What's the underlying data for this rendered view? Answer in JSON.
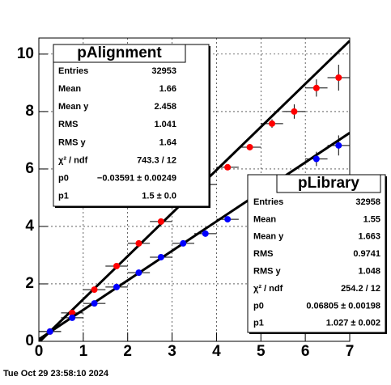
{
  "chart_data": {
    "type": "profile",
    "xlim": [
      0,
      7
    ],
    "ylim": [
      0,
      10.56
    ],
    "xticks": [
      0,
      1,
      2,
      3,
      4,
      5,
      6,
      7
    ],
    "yticks": [
      0,
      2,
      4,
      6,
      8,
      10
    ],
    "grid": true,
    "timestamp": "Tue Oct 29 23:58:10 2024",
    "series": [
      {
        "name": "pAlignment",
        "color": "#ff0000",
        "x": [
          0.25,
          0.75,
          1.25,
          1.75,
          2.25,
          2.75,
          3.75,
          4.25,
          4.75,
          5.25,
          5.75,
          6.25,
          6.75
        ],
        "values": [
          0.34,
          0.99,
          1.8,
          2.62,
          3.41,
          4.17,
          5.46,
          6.06,
          6.76,
          7.58,
          8.0,
          8.82,
          9.18
        ],
        "errors": [
          0.05,
          0.05,
          0.05,
          0.05,
          0.05,
          0.05,
          0.06,
          0.08,
          0.1,
          0.15,
          0.25,
          0.3,
          0.45
        ],
        "stats": [
          {
            "name": "Entries",
            "value": 32953
          },
          {
            "name": "Mean",
            "value": 1.66
          },
          {
            "name": "Mean y",
            "value": 2.458
          },
          {
            "name": "RMS",
            "value": 1.041
          },
          {
            "name": "RMS y",
            "value": 1.64
          },
          {
            "name": "χ² / ndf",
            "value": "743.3 / 12"
          },
          {
            "name": "p0",
            "value": -0.03591,
            "error": 0.00249,
            "value_label": "−0.03591 ± 0.00249"
          },
          {
            "name": "p1",
            "value": 1.5,
            "error": 0.0,
            "value_label": "1.5  ± 0.0"
          }
        ]
      },
      {
        "name": "pLibrary",
        "color": "#0000ff",
        "x": [
          0.25,
          0.75,
          1.25,
          1.75,
          2.25,
          2.75,
          3.25,
          3.75,
          4.25,
          6.25,
          6.75
        ],
        "values": [
          0.34,
          0.82,
          1.32,
          1.89,
          2.39,
          2.93,
          3.41,
          3.75,
          4.25,
          6.35,
          6.82
        ],
        "errors": [
          0.05,
          0.05,
          0.05,
          0.05,
          0.05,
          0.05,
          0.05,
          0.06,
          0.08,
          0.25,
          0.35
        ],
        "stats": [
          {
            "name": "Entries",
            "value": 32958
          },
          {
            "name": "Mean",
            "value": 1.55
          },
          {
            "name": "Mean y",
            "value": 1.663
          },
          {
            "name": "RMS",
            "value": 0.9741
          },
          {
            "name": "RMS y",
            "value": 1.048
          },
          {
            "name": "χ² / ndf",
            "value": "254.2 / 12"
          },
          {
            "name": "p0",
            "value": 0.06805,
            "error": 0.00198,
            "value_label": "0.06805 ± 0.00198"
          },
          {
            "name": "p1",
            "value": 1.027,
            "error": 0.002,
            "value_label": "1.027 ± 0.002"
          }
        ]
      }
    ]
  }
}
